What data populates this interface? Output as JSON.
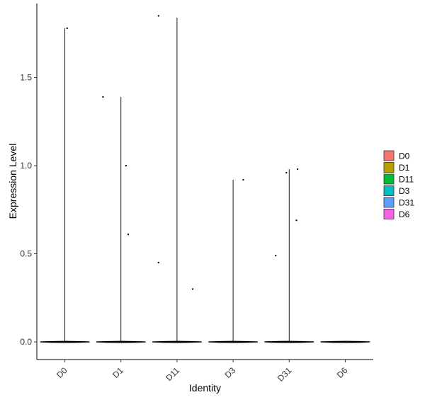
{
  "chart_data": {
    "type": "violin",
    "title": "",
    "xlabel": "Identity",
    "ylabel": "Expression Level",
    "categories": [
      "D0",
      "D1",
      "D11",
      "D3",
      "D31",
      "D6"
    ],
    "ylim": [
      -0.1,
      1.92
    ],
    "yticks": [
      "0.0",
      "0.5",
      "1.0",
      "1.5"
    ],
    "yticks_values": [
      0.0,
      0.5,
      1.0,
      1.5
    ],
    "grid": false,
    "legend_position": "right",
    "legend": [
      {
        "label": "D0",
        "color": "#F8766D"
      },
      {
        "label": "D1",
        "color": "#B79F00"
      },
      {
        "label": "D11",
        "color": "#00BA38"
      },
      {
        "label": "D3",
        "color": "#00BFC4"
      },
      {
        "label": "D31",
        "color": "#619CFF"
      },
      {
        "label": "D6",
        "color": "#F564E3"
      }
    ],
    "series": [
      {
        "name": "D0",
        "max": 1.78,
        "points": [
          [
            0.04,
            1.78
          ]
        ]
      },
      {
        "name": "D1",
        "max": 1.39,
        "points": [
          [
            -0.32,
            1.39
          ],
          [
            0.09,
            1.0
          ],
          [
            0.13,
            0.61
          ]
        ]
      },
      {
        "name": "D11",
        "max": 1.84,
        "points": [
          [
            -0.33,
            1.85
          ],
          [
            -0.33,
            0.45
          ],
          [
            0.28,
            0.3
          ]
        ]
      },
      {
        "name": "D3",
        "max": 0.92,
        "points": [
          [
            0.18,
            0.92
          ]
        ]
      },
      {
        "name": "D31",
        "max": 0.98,
        "points": [
          [
            -0.05,
            0.96
          ],
          [
            0.15,
            0.98
          ],
          [
            0.13,
            0.69
          ],
          [
            -0.24,
            0.49
          ]
        ]
      },
      {
        "name": "D6",
        "max": 0.0,
        "points": []
      }
    ]
  }
}
